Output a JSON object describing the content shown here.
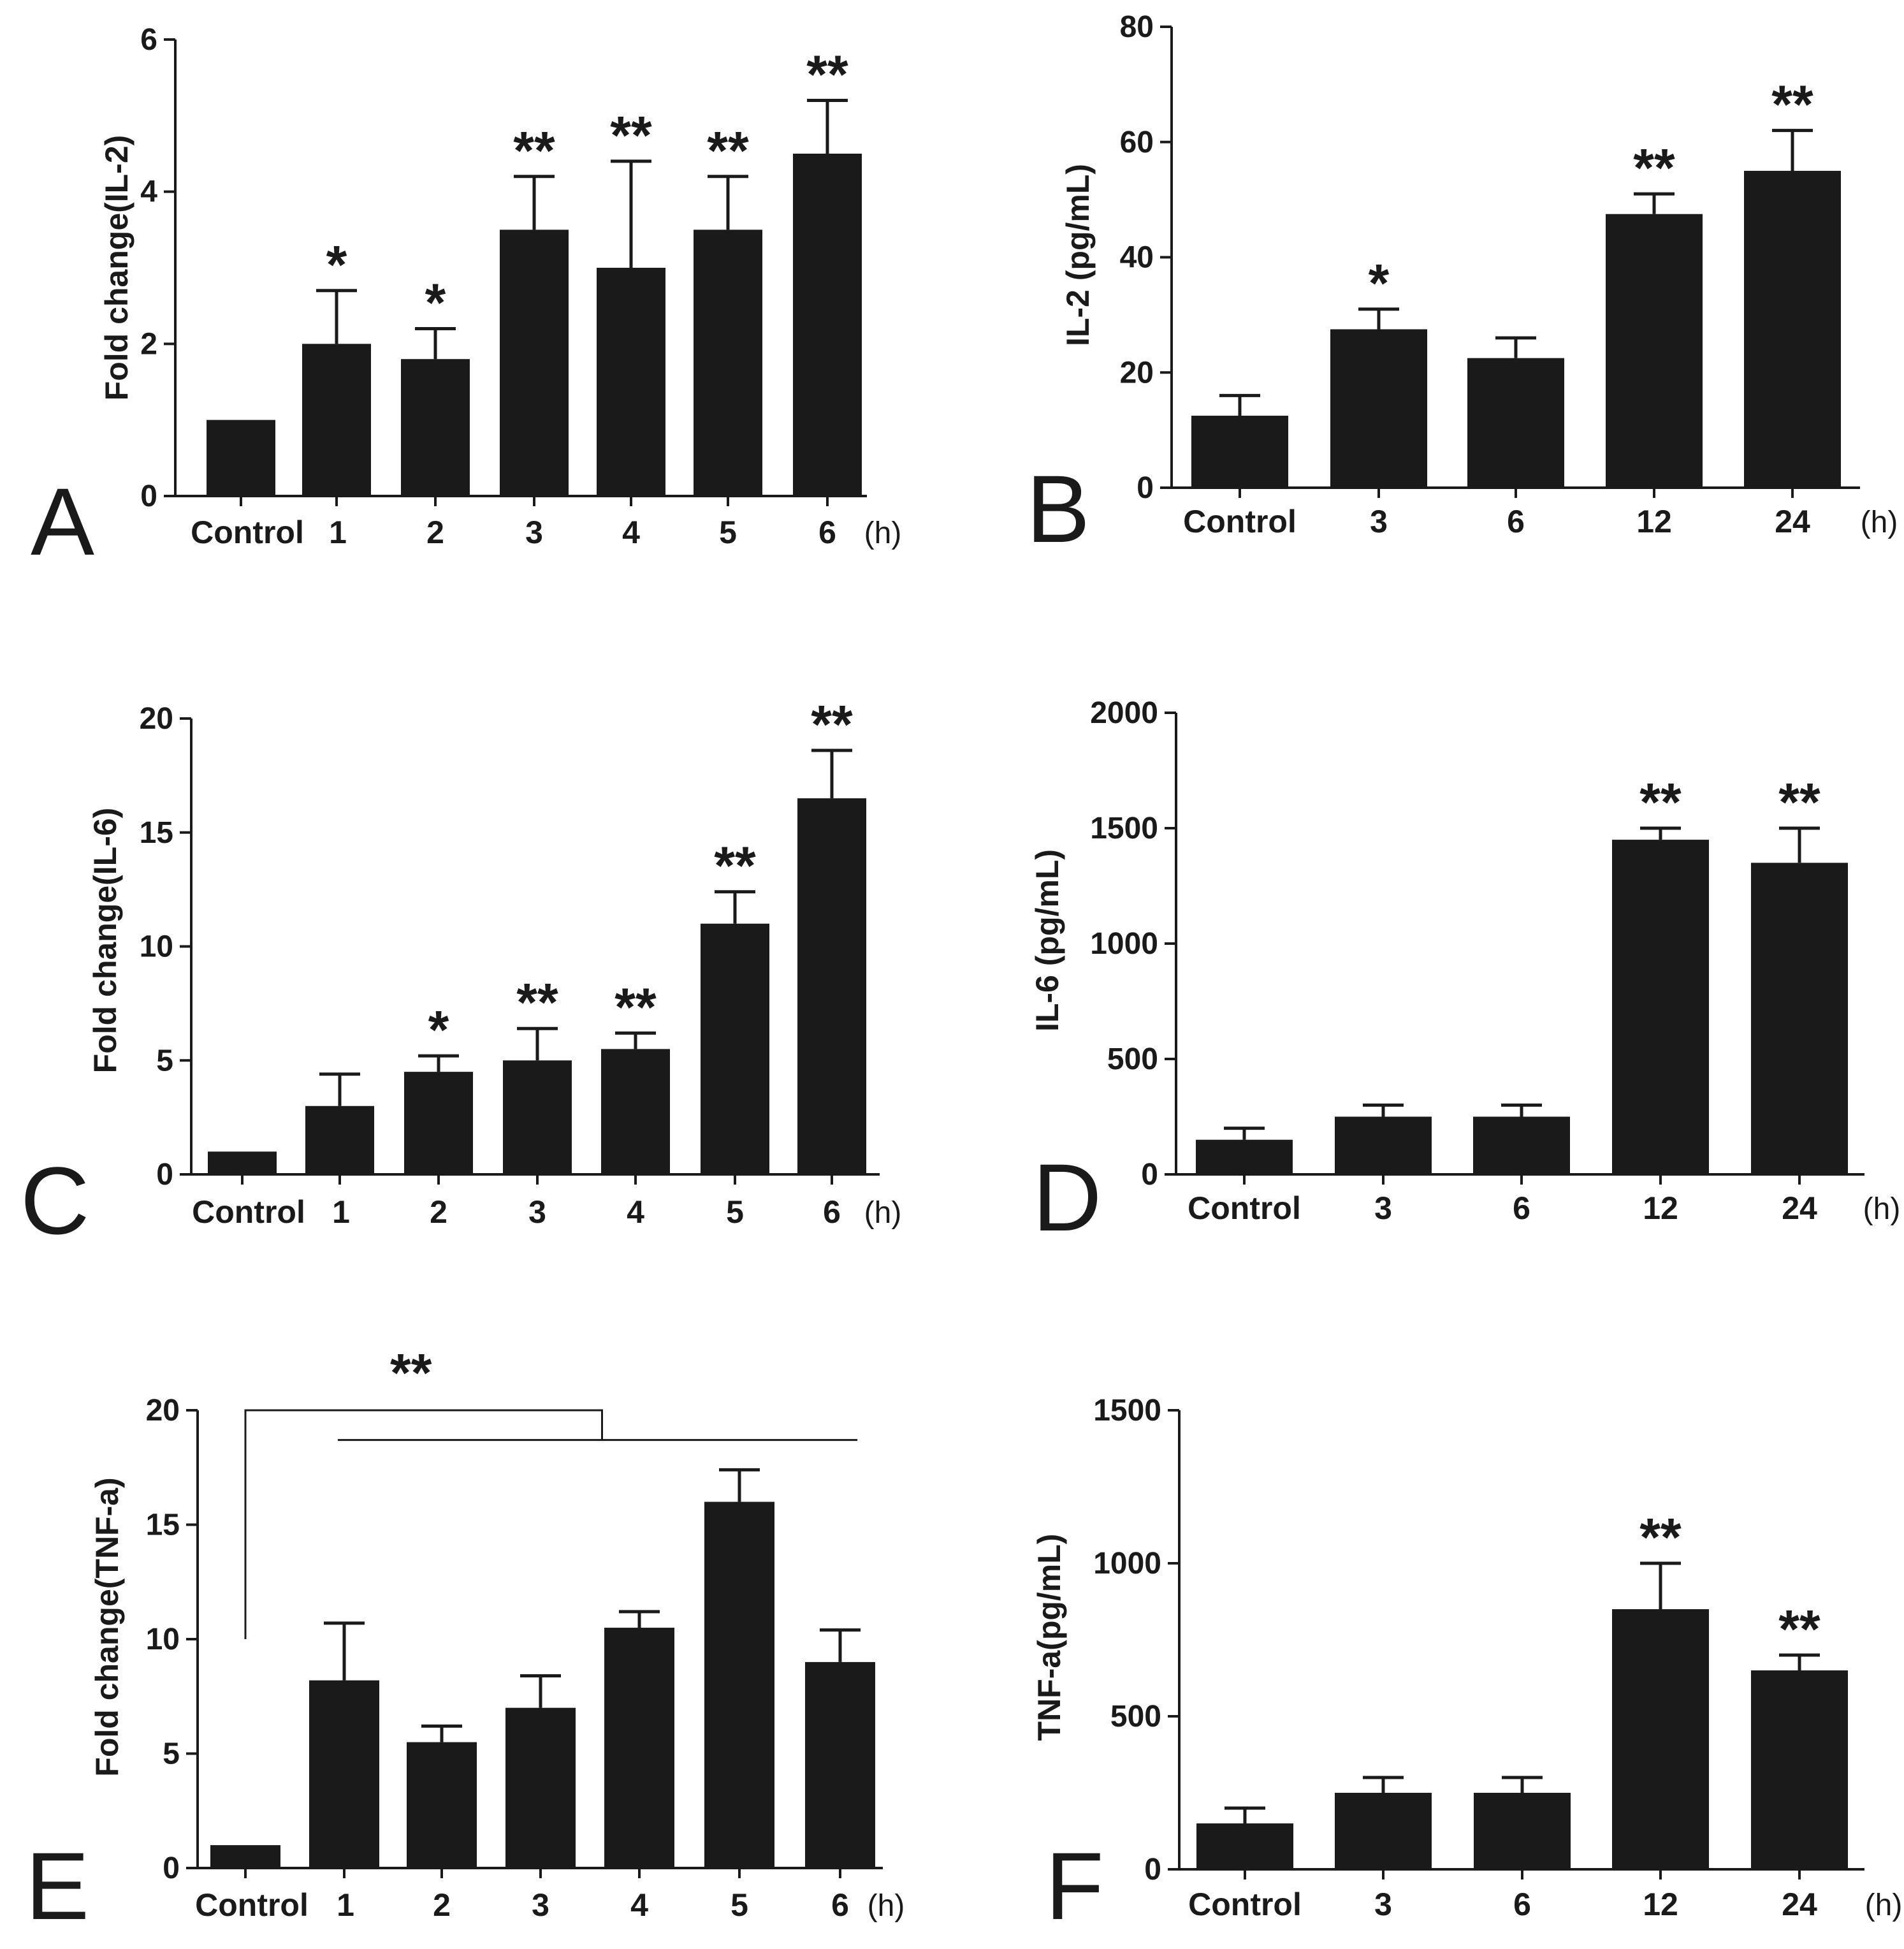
{
  "chart_data": [
    {
      "panel": "A",
      "type": "bar",
      "ylabel": "Fold change(IL-2)",
      "ylim": [
        0,
        6
      ],
      "yticks": [
        "0",
        "2",
        "4",
        "6"
      ],
      "categories": [
        "Control",
        "1",
        "2",
        "3",
        "4",
        "5",
        "6"
      ],
      "unit": "(h)",
      "values": [
        1.0,
        2.0,
        1.8,
        3.5,
        3.0,
        3.5,
        4.5
      ],
      "errors": [
        0,
        0.7,
        0.4,
        0.7,
        1.4,
        0.7,
        0.7
      ],
      "significance": [
        "",
        "*",
        "*",
        "**",
        "**",
        "**",
        "**"
      ],
      "color": "#1a1a1a"
    },
    {
      "panel": "B",
      "type": "bar",
      "ylabel": "IL-2 (pg/mL)",
      "ylim": [
        0,
        80
      ],
      "yticks": [
        "0",
        "20",
        "40",
        "60",
        "80"
      ],
      "categories": [
        "Control",
        "3",
        "6",
        "12",
        "24"
      ],
      "unit": "(h)",
      "values": [
        12.5,
        27.5,
        22.5,
        47.5,
        55.0
      ],
      "errors": [
        3.5,
        3.5,
        3.5,
        3.5,
        7.0
      ],
      "significance": [
        "",
        "*",
        "",
        "**",
        "**"
      ],
      "color": "#1a1a1a"
    },
    {
      "panel": "C",
      "type": "bar",
      "ylabel": "Fold change(IL-6)",
      "ylim": [
        0,
        20
      ],
      "yticks": [
        "0",
        "5",
        "10",
        "15",
        "20"
      ],
      "categories": [
        "Control",
        "1",
        "2",
        "3",
        "4",
        "5",
        "6"
      ],
      "unit": "(h)",
      "values": [
        1.0,
        3.0,
        4.5,
        5.0,
        5.5,
        11.0,
        16.5
      ],
      "errors": [
        0,
        1.4,
        0.7,
        1.4,
        0.7,
        1.4,
        2.1
      ],
      "significance": [
        "",
        "",
        "*",
        "**",
        "**",
        "**",
        "**"
      ],
      "color": "#1a1a1a"
    },
    {
      "panel": "D",
      "type": "bar",
      "ylabel": "IL-6 (pg/mL)",
      "ylim": [
        0,
        2000
      ],
      "yticks": [
        "0",
        "500",
        "1000",
        "1500",
        "2000"
      ],
      "categories": [
        "Control",
        "3",
        "6",
        "12",
        "24"
      ],
      "unit": "(h)",
      "values": [
        150,
        250,
        250,
        1450,
        1350
      ],
      "errors": [
        50,
        50,
        50,
        50,
        150
      ],
      "significance": [
        "",
        "",
        "",
        "**",
        "**"
      ],
      "color": "#1a1a1a"
    },
    {
      "panel": "E",
      "type": "bar",
      "ylabel": "Fold change(TNF-a)",
      "ylim": [
        0,
        20
      ],
      "yticks": [
        "0",
        "5",
        "10",
        "15",
        "20"
      ],
      "categories": [
        "Control",
        "1",
        "2",
        "3",
        "4",
        "5",
        "6"
      ],
      "unit": "(h)",
      "values": [
        1.0,
        8.2,
        5.5,
        7.0,
        10.5,
        16.0,
        9.0
      ],
      "errors": [
        0,
        2.5,
        0.7,
        1.4,
        0.7,
        1.4,
        1.4
      ],
      "significance": [
        "",
        "",
        "",
        "",
        "",
        "",
        ""
      ],
      "bracket": {
        "label": "**",
        "from": "Control",
        "to_group": [
          "1",
          "6"
        ],
        "y_top": 20,
        "y_group": 18.7,
        "y_control_end": 10.0
      },
      "color": "#1a1a1a"
    },
    {
      "panel": "F",
      "type": "bar",
      "ylabel": "TNF-a(pg/mL)",
      "ylim": [
        0,
        1500
      ],
      "yticks": [
        "0",
        "500",
        "1000",
        "1500"
      ],
      "categories": [
        "Control",
        "3",
        "6",
        "12",
        "24"
      ],
      "unit": "(h)",
      "values": [
        150,
        250,
        250,
        850,
        650
      ],
      "errors": [
        50,
        50,
        50,
        150,
        50
      ],
      "significance": [
        "",
        "",
        "",
        "**",
        "**"
      ],
      "color": "#1a1a1a"
    }
  ]
}
